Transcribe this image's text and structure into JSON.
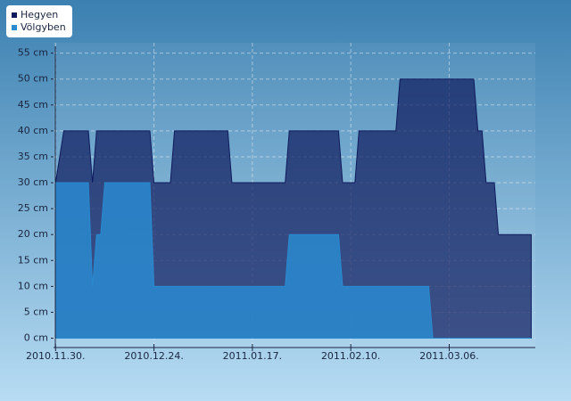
{
  "chart_data": {
    "type": "area",
    "x": [
      0,
      2,
      8,
      9,
      10,
      11,
      12,
      23,
      24,
      28,
      29,
      42,
      43,
      56,
      57,
      69,
      70,
      73,
      74,
      83,
      84,
      91,
      92,
      102,
      103,
      104,
      105,
      107,
      108,
      116
    ],
    "series": [
      {
        "name": "Hegyen",
        "color": "#0e1a5c",
        "values": [
          30,
          40,
          40,
          30,
          40,
          40,
          40,
          40,
          30,
          30,
          40,
          40,
          30,
          30,
          40,
          40,
          30,
          30,
          40,
          40,
          50,
          50,
          50,
          50,
          40,
          40,
          30,
          30,
          20,
          20
        ]
      },
      {
        "name": "Völgyben",
        "color": "#2a8ad0",
        "values": [
          30,
          30,
          30,
          10,
          20,
          20,
          30,
          30,
          10,
          10,
          10,
          10,
          10,
          10,
          20,
          20,
          10,
          10,
          10,
          10,
          10,
          10,
          0,
          0,
          0,
          0,
          0,
          0,
          0,
          0
        ]
      }
    ],
    "xlim": [
      -0.5,
      117
    ],
    "xticks": [
      {
        "value": 0,
        "label": "2010.11.30."
      },
      {
        "value": 24,
        "label": "2010.12.24."
      },
      {
        "value": 48,
        "label": "2011.01.17."
      },
      {
        "value": 72,
        "label": "2011.02.10."
      },
      {
        "value": 96,
        "label": "2011.03.06."
      }
    ],
    "ylim": [
      -1.8,
      57
    ],
    "yticks": [
      {
        "value": 0,
        "label": "0 cm"
      },
      {
        "value": 5,
        "label": "5 cm"
      },
      {
        "value": 10,
        "label": "10 cm"
      },
      {
        "value": 15,
        "label": "15 cm"
      },
      {
        "value": 20,
        "label": "20 cm"
      },
      {
        "value": 25,
        "label": "25 cm"
      },
      {
        "value": 30,
        "label": "30 cm"
      },
      {
        "value": 35,
        "label": "35 cm"
      },
      {
        "value": 40,
        "label": "40 cm"
      },
      {
        "value": 45,
        "label": "45 cm"
      },
      {
        "value": 50,
        "label": "50 cm"
      },
      {
        "value": 55,
        "label": "55 cm"
      }
    ],
    "grid": true
  }
}
